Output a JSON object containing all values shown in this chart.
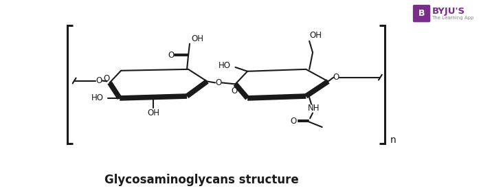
{
  "title": "Glycosaminoglycans structure",
  "title_fontsize": 12,
  "title_fontweight": "bold",
  "bg_color": "#ffffff",
  "line_color": "#1a1a1a",
  "label_color": "#1a1a1a",
  "byju_purple": "#7B2D8B",
  "byju_text": "BYJU'S",
  "byju_sub": "The Learning App",
  "lw": 1.5,
  "blw": 5.5,
  "bracket_lw": 2.2,
  "font_size": 8.5
}
